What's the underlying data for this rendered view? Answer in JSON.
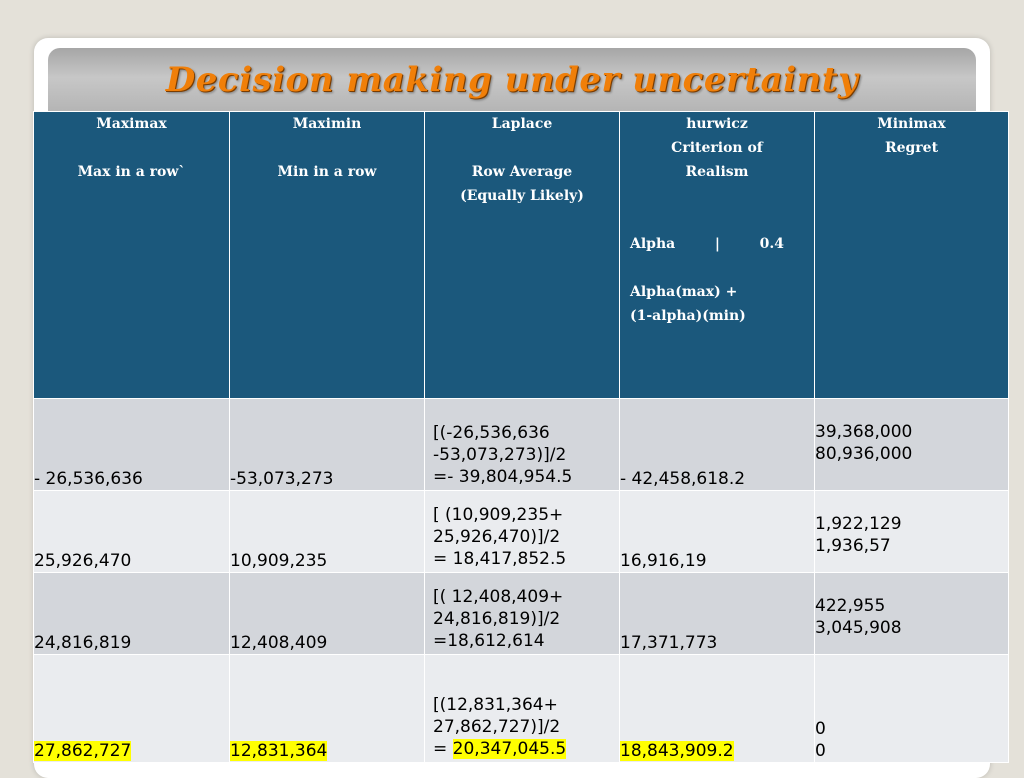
{
  "title": "Decision making  under uncertainty",
  "headers": {
    "maximax": {
      "title": "Maximax",
      "sub": "Max in  a row`"
    },
    "maximin": {
      "title": "Maximin",
      "sub": "Min in  a row"
    },
    "laplace": {
      "title": "Laplace",
      "sub1": "Row Average",
      "sub2": "(Equally Likely)"
    },
    "hurwicz": {
      "l1": "hurwicz",
      "l2": "Criterion of",
      "l3": "Realism",
      "alpha_label": "Alpha",
      "alpha_sep": "|",
      "alpha_value": "0.4",
      "formula1": "Alpha(max)  +",
      "formula2": "(1-alpha)(min)"
    },
    "minimax": {
      "l1": "Minimax",
      "l2": "Regret"
    }
  },
  "rows": [
    {
      "maximax": "- 26,536,636",
      "maximin": "-53,073,273",
      "laplace": [
        "[(-26,536,636",
        "-53,073,273)]/2",
        "=- 39,804,954.5"
      ],
      "hurwicz": "- 42,458,618.2",
      "regret": [
        "39,368,000",
        "80,936,000"
      ]
    },
    {
      "maximax": "25,926,470",
      "maximin": "10,909,235",
      "laplace": [
        "[ (10,909,235+",
        "25,926,470)]/2",
        "= 18,417,852.5"
      ],
      "hurwicz": "16,916,19",
      "regret": [
        "1,922,129",
        "1,936,57"
      ]
    },
    {
      "maximax": "24,816,819",
      "maximin": "12,408,409",
      "laplace": [
        "[( 12,408,409+",
        "24,816,819)]/2",
        "=18,612,614"
      ],
      "hurwicz": "17,371,773",
      "regret": [
        "422,955",
        "3,045,908"
      ]
    },
    {
      "maximax": "27,862,727",
      "maximin": "12,831,364",
      "laplace": [
        "[(12,831,364+",
        "27,862,727)]/2",
        "= ",
        "20,347,045.5"
      ],
      "hurwicz": "18,843,909.2",
      "regret": [
        "0",
        "0"
      ]
    }
  ],
  "colors": {
    "header_bg": "#1b587c",
    "row_odd": "#d3d6db",
    "row_even": "#eaecef",
    "highlight": "#ffff00",
    "title": "#f07f09"
  }
}
